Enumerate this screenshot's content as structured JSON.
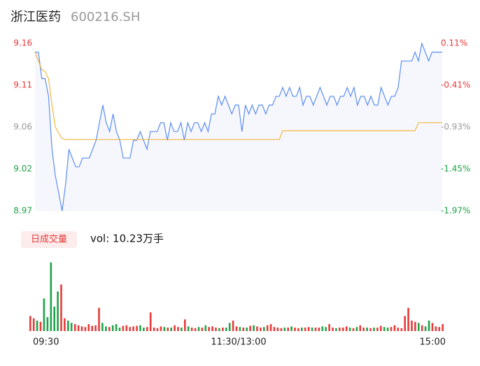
{
  "header": {
    "name": "浙江医药",
    "code": "600216.SH"
  },
  "chart_data": [
    {
      "type": "line",
      "xlim": [
        0,
        120
      ],
      "xticks": [
        {
          "value": 0,
          "label": "09:30"
        },
        {
          "value": 60,
          "label": "11:30/13:00"
        },
        {
          "value": 120,
          "label": "15:00"
        }
      ],
      "ylim": [
        8.97,
        9.16
      ],
      "yticks": [
        9.16,
        {
          "value": 9.1125,
          "label": "9.11"
        },
        {
          "value": 9.065,
          "label": "9.06"
        },
        {
          "value": 9.0175,
          "label": "9.02"
        },
        8.97
      ],
      "y2lim": [
        -1.97,
        0.11
      ],
      "y2ticks": [
        {
          "value": 0.11,
          "label": "0.11%"
        },
        {
          "value": -0.41,
          "label": "-0.41%"
        },
        {
          "value": -0.93,
          "label": "-0.93%"
        },
        {
          "value": -1.45,
          "label": "-1.45%"
        },
        {
          "value": -1.97,
          "label": "-1.97%"
        }
      ],
      "up_color": "#e83a3a",
      "flat_color": "#999999",
      "down_color": "#1fa34a",
      "series": [
        {
          "color": "#5b8def",
          "fill": "#f6f7fd",
          "values": [
            9.15,
            9.15,
            9.12,
            9.12,
            9.1,
            9.04,
            9.01,
            8.99,
            8.97,
            9.0,
            9.04,
            9.03,
            9.02,
            9.02,
            9.03,
            9.03,
            9.03,
            9.04,
            9.05,
            9.07,
            9.09,
            9.07,
            9.06,
            9.08,
            9.06,
            9.05,
            9.03,
            9.03,
            9.03,
            9.05,
            9.05,
            9.06,
            9.05,
            9.04,
            9.06,
            9.06,
            9.06,
            9.07,
            9.07,
            9.05,
            9.07,
            9.06,
            9.06,
            9.07,
            9.05,
            9.07,
            9.06,
            9.07,
            9.07,
            9.06,
            9.07,
            9.06,
            9.08,
            9.08,
            9.1,
            9.09,
            9.1,
            9.09,
            9.08,
            9.09,
            9.09,
            9.06,
            9.09,
            9.08,
            9.09,
            9.08,
            9.09,
            9.09,
            9.08,
            9.09,
            9.09,
            9.1,
            9.1,
            9.11,
            9.1,
            9.11,
            9.1,
            9.1,
            9.11,
            9.09,
            9.1,
            9.1,
            9.09,
            9.1,
            9.11,
            9.1,
            9.09,
            9.1,
            9.1,
            9.09,
            9.1,
            9.1,
            9.11,
            9.1,
            9.11,
            9.09,
            9.1,
            9.1,
            9.09,
            9.1,
            9.09,
            9.09,
            9.11,
            9.1,
            9.09,
            9.1,
            9.1,
            9.11,
            9.14,
            9.14,
            9.14,
            9.14,
            9.15,
            9.14,
            9.16,
            9.15,
            9.14,
            9.15,
            9.15,
            9.15,
            9.15
          ]
        },
        {
          "color": "#f5b53f",
          "values": [
            9.15,
            9.14,
            9.13,
            9.128,
            9.12,
            9.09,
            9.065,
            9.058,
            9.052,
            9.051,
            9.051,
            9.051,
            9.051,
            9.051,
            9.051,
            9.051,
            9.051,
            9.051,
            9.051,
            9.051,
            9.051,
            9.051,
            9.051,
            9.051,
            9.051,
            9.051,
            9.051,
            9.051,
            9.051,
            9.051,
            9.051,
            9.051,
            9.051,
            9.051,
            9.051,
            9.051,
            9.051,
            9.051,
            9.051,
            9.051,
            9.051,
            9.051,
            9.051,
            9.051,
            9.051,
            9.051,
            9.051,
            9.051,
            9.051,
            9.051,
            9.051,
            9.051,
            9.051,
            9.051,
            9.051,
            9.051,
            9.051,
            9.051,
            9.051,
            9.051,
            9.051,
            9.051,
            9.051,
            9.051,
            9.051,
            9.051,
            9.051,
            9.051,
            9.051,
            9.051,
            9.051,
            9.051,
            9.051,
            9.061,
            9.061,
            9.061,
            9.061,
            9.061,
            9.061,
            9.061,
            9.061,
            9.061,
            9.061,
            9.061,
            9.061,
            9.061,
            9.061,
            9.061,
            9.061,
            9.061,
            9.061,
            9.061,
            9.061,
            9.061,
            9.061,
            9.061,
            9.061,
            9.061,
            9.061,
            9.061,
            9.061,
            9.061,
            9.061,
            9.061,
            9.061,
            9.061,
            9.061,
            9.061,
            9.061,
            9.061,
            9.061,
            9.061,
            9.061,
            9.07,
            9.07,
            9.07,
            9.07,
            9.07,
            9.07,
            9.07,
            9.07
          ]
        }
      ]
    },
    {
      "type": "bar",
      "title": "日成交量",
      "subtitle": "vol: 10.23万手",
      "ylim": [
        0,
        6000
      ],
      "up_color": "#e83a3a",
      "down_color": "#1fa34a",
      "flat_color": "#e83a3a",
      "values": [
        1300,
        1100,
        900,
        800,
        2800,
        1200,
        5900,
        2100,
        3400,
        4000,
        1100,
        900,
        700,
        600,
        500,
        400,
        350,
        600,
        450,
        500,
        2000,
        700,
        400,
        350,
        500,
        600,
        300,
        450,
        500,
        350,
        400,
        450,
        500,
        300,
        350,
        1600,
        300,
        250,
        400,
        350,
        300,
        300,
        500,
        350,
        300,
        1000,
        400,
        300,
        250,
        350,
        300,
        500,
        350,
        400,
        300,
        250,
        300,
        300,
        700,
        900,
        400,
        350,
        300,
        300,
        450,
        500,
        400,
        300,
        350,
        500,
        600,
        350,
        300,
        250,
        300,
        300,
        400,
        300,
        250,
        300,
        300,
        350,
        300,
        300,
        300,
        400,
        350,
        600,
        300,
        250,
        300,
        300,
        400,
        300,
        250,
        350,
        500,
        300,
        300,
        250,
        300,
        300,
        450,
        350,
        300,
        350,
        500,
        300,
        250,
        1300,
        2000,
        900,
        800,
        700,
        500,
        400,
        900,
        700,
        400,
        350,
        600
      ]
    }
  ]
}
